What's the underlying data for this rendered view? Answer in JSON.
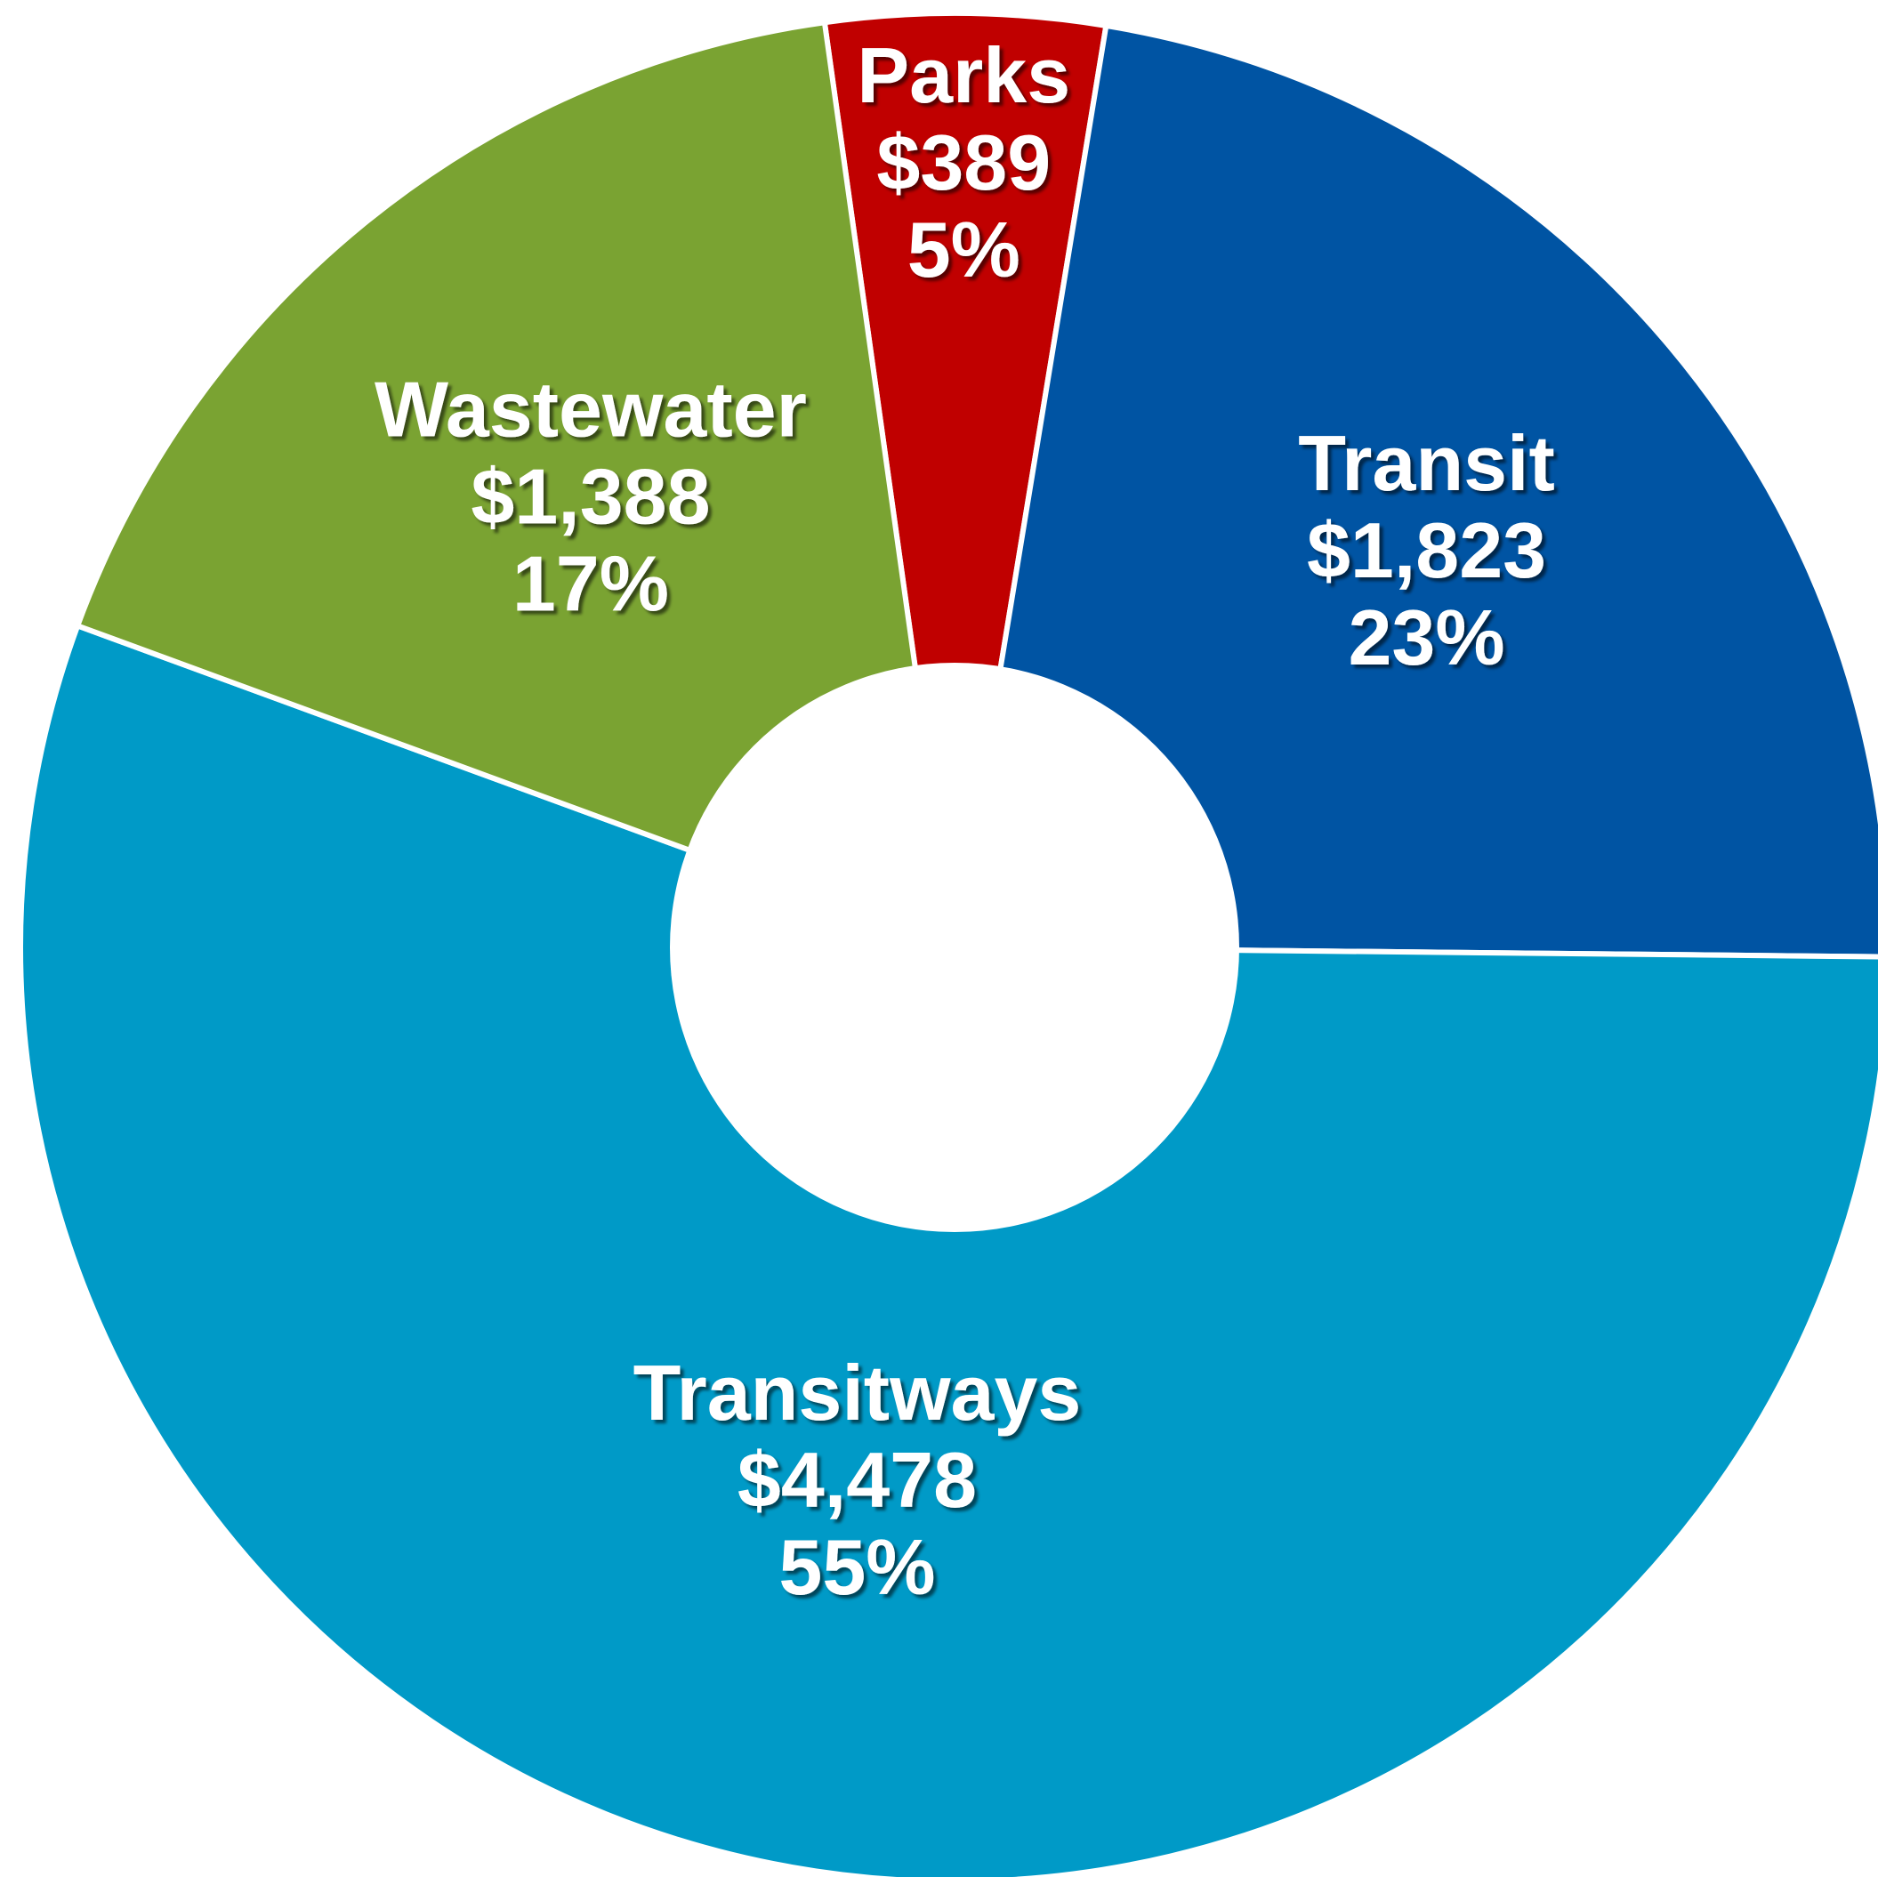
{
  "chart_data": {
    "type": "pie",
    "variant": "donut",
    "legend": "none",
    "categories": [
      "Parks",
      "Transit",
      "Transitways",
      "Wastewater"
    ],
    "values": [
      389,
      1823,
      4478,
      1388
    ],
    "value_labels": [
      "$389",
      "$1,823",
      "$4,478",
      "$1,388"
    ],
    "percent_labels": [
      "5%",
      "23%",
      "55%",
      "17%"
    ],
    "colors": [
      "#C00000",
      "#0054A3",
      "#009AC7",
      "#7AA332"
    ]
  }
}
